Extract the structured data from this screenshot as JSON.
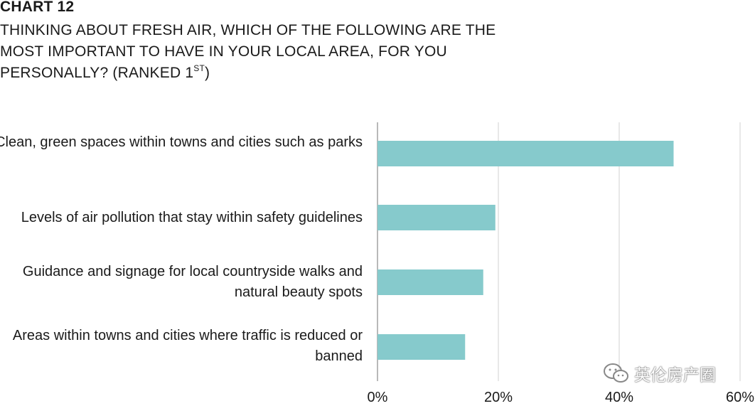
{
  "chart_data": {
    "type": "bar",
    "orientation": "horizontal",
    "label": "CHART 12",
    "title_main": "THINKING ABOUT FRESH AIR, WHICH OF THE FOLLOWING ARE THE MOST IMPORTANT TO HAVE IN YOUR LOCAL AREA, FOR YOU PERSONALLY? (RANKED 1",
    "title_sup": "ST",
    "title_end": ")",
    "categories": [
      "Clean, green spaces within towns and cities such as parks",
      "Levels of air pollution that stay within safety guidelines",
      "Guidance and signage for local countryside walks and natural beauty spots",
      "Areas within towns and cities where traffic is reduced or banned"
    ],
    "values": [
      49,
      19.5,
      17.5,
      14.5
    ],
    "xlim": [
      0,
      60
    ],
    "ticks": [
      0,
      20,
      40,
      60
    ],
    "tick_labels": [
      "0%",
      "20%",
      "40%",
      "60%"
    ],
    "grid": true,
    "bar_color": "#86cacc",
    "grid_color": "#d0d0d0"
  },
  "watermark": {
    "text": "英伦房产圈",
    "icon": "wechat-icon"
  }
}
